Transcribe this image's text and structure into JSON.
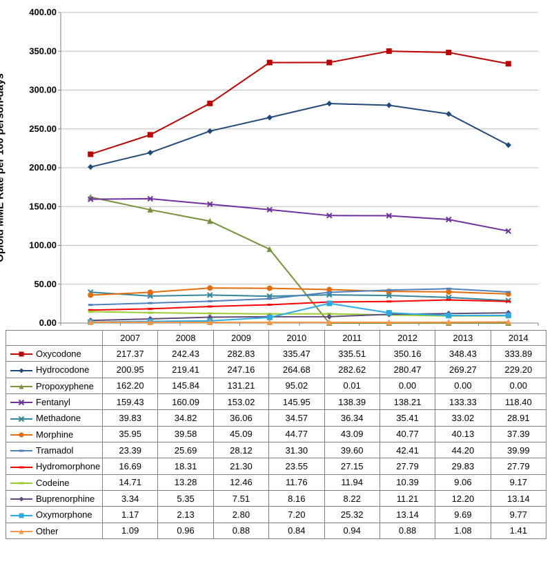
{
  "chart": {
    "type": "line",
    "y_axis_label": "Opioid MME Rate per 100 person-days",
    "years": [
      "2007",
      "2008",
      "2009",
      "2010",
      "2011",
      "2012",
      "2013",
      "2014"
    ],
    "ylim": [
      0,
      400
    ],
    "ytick_step": 50,
    "y_tick_labels": [
      "0.00",
      "50.00",
      "100.00",
      "150.00",
      "200.00",
      "250.00",
      "300.00",
      "350.00",
      "400.00"
    ],
    "background_color": "#ffffff",
    "grid_color": "#bfbfbf",
    "axis_color": "#808080",
    "tick_font_size": 13,
    "line_width": 2,
    "marker_size": 7,
    "series": [
      {
        "name": "Oxycodone",
        "color": "#c00000",
        "marker": "square",
        "values": [
          217.37,
          242.43,
          282.83,
          335.47,
          335.51,
          350.16,
          348.43,
          333.89
        ]
      },
      {
        "name": "Hydrocodone",
        "color": "#1f497d",
        "marker": "diamond",
        "values": [
          200.95,
          219.41,
          247.16,
          264.68,
          282.62,
          280.47,
          269.27,
          229.2
        ]
      },
      {
        "name": "Propoxyphene",
        "color": "#76933c",
        "marker": "triangle",
        "values": [
          162.2,
          145.84,
          131.21,
          95.02,
          0.01,
          0.0,
          0.0,
          0.0
        ]
      },
      {
        "name": "Fentanyl",
        "color": "#7030a0",
        "marker": "x",
        "values": [
          159.43,
          160.09,
          153.02,
          145.95,
          138.39,
          138.21,
          133.33,
          118.4
        ]
      },
      {
        "name": "Methadone",
        "color": "#31869b",
        "marker": "x",
        "values": [
          39.83,
          34.82,
          36.06,
          34.57,
          36.34,
          35.41,
          33.02,
          28.91
        ]
      },
      {
        "name": "Morphine",
        "color": "#e46c0a",
        "marker": "circle",
        "values": [
          35.95,
          39.58,
          45.09,
          44.77,
          43.09,
          40.77,
          40.13,
          37.39
        ]
      },
      {
        "name": "Tramadol",
        "color": "#4f81bd",
        "marker": "dash",
        "values": [
          23.39,
          25.69,
          28.12,
          31.3,
          39.6,
          42.41,
          44.2,
          39.99
        ]
      },
      {
        "name": "Hydromorphone",
        "color": "#ff0000",
        "marker": "dash",
        "values": [
          16.69,
          18.31,
          21.3,
          23.55,
          27.15,
          27.79,
          29.83,
          27.79
        ]
      },
      {
        "name": "Codeine",
        "color": "#9acd32",
        "marker": "dash",
        "values": [
          14.71,
          13.28,
          12.46,
          11.76,
          11.94,
          10.39,
          9.06,
          9.17
        ]
      },
      {
        "name": "Buprenorphine",
        "color": "#604a7b",
        "marker": "diamond",
        "values": [
          3.34,
          5.35,
          7.51,
          8.16,
          8.22,
          11.21,
          12.2,
          13.14
        ]
      },
      {
        "name": "Oxymorphone",
        "color": "#29abe2",
        "marker": "square",
        "values": [
          1.17,
          2.13,
          2.8,
          7.2,
          25.32,
          13.14,
          9.69,
          9.77
        ]
      },
      {
        "name": "Other",
        "color": "#f79646",
        "marker": "triangle",
        "values": [
          1.09,
          0.96,
          0.88,
          0.84,
          0.94,
          0.88,
          1.08,
          1.41
        ]
      }
    ]
  }
}
